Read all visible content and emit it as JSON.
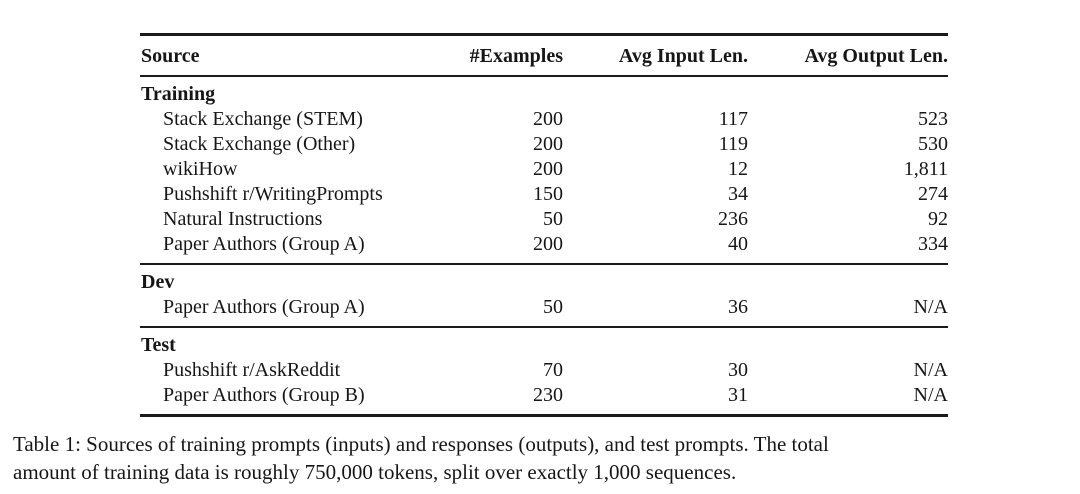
{
  "table": {
    "columns": [
      "Source",
      "#Examples",
      "Avg Input Len.",
      "Avg Output Len."
    ],
    "sections": [
      {
        "label": "Training",
        "rows": [
          {
            "source": "Stack Exchange (STEM)",
            "examples": "200",
            "avg_input": "117",
            "avg_output": "523"
          },
          {
            "source": "Stack Exchange (Other)",
            "examples": "200",
            "avg_input": "119",
            "avg_output": "530"
          },
          {
            "source": "wikiHow",
            "examples": "200",
            "avg_input": "12",
            "avg_output": "1,811"
          },
          {
            "source": "Pushshift r/WritingPrompts",
            "examples": "150",
            "avg_input": "34",
            "avg_output": "274"
          },
          {
            "source": "Natural Instructions",
            "examples": "50",
            "avg_input": "236",
            "avg_output": "92"
          },
          {
            "source": "Paper Authors (Group A)",
            "examples": "200",
            "avg_input": "40",
            "avg_output": "334"
          }
        ]
      },
      {
        "label": "Dev",
        "rows": [
          {
            "source": "Paper Authors (Group A)",
            "examples": "50",
            "avg_input": "36",
            "avg_output": "N/A"
          }
        ]
      },
      {
        "label": "Test",
        "rows": [
          {
            "source": "Pushshift r/AskReddit",
            "examples": "70",
            "avg_input": "30",
            "avg_output": "N/A"
          },
          {
            "source": "Paper Authors (Group B)",
            "examples": "230",
            "avg_input": "31",
            "avg_output": "N/A"
          }
        ]
      }
    ]
  },
  "caption": {
    "lines": [
      "Table 1: Sources of training prompts (inputs) and responses (outputs), and test prompts. The total",
      "amount of training data is roughly 750,000 tokens, split over exactly 1,000 sequences."
    ]
  },
  "colors": {
    "background": "#ffffff",
    "text": "#161616",
    "rule": "#1b1b1b"
  }
}
